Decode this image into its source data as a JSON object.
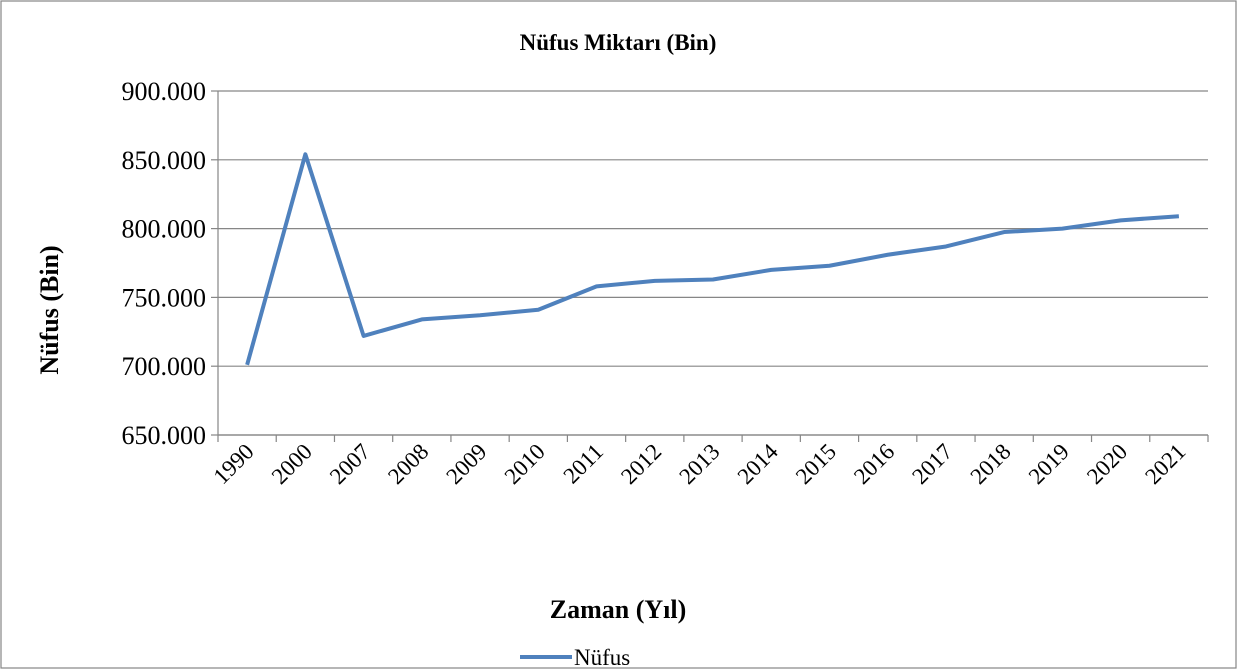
{
  "chart_data": {
    "type": "line",
    "title": "Nüfus Miktarı (Bin)",
    "x_label": "Zaman (Yıl)",
    "y_label": "Nüfus (Bin)",
    "categories": [
      "1990",
      "2000",
      "2007",
      "2008",
      "2009",
      "2010",
      "2011",
      "2012",
      "2013",
      "2014",
      "2015",
      "2016",
      "2017",
      "2018",
      "2019",
      "2020",
      "2021"
    ],
    "series": [
      {
        "name": "Nüfus",
        "color": "#4f81bd",
        "values": [
          701000,
          854000,
          722000,
          734000,
          737000,
          741000,
          758000,
          762000,
          763000,
          770000,
          773000,
          781000,
          787000,
          797500,
          800000,
          806000,
          809000
        ]
      }
    ],
    "ylim": [
      650000,
      900000
    ],
    "yticks": [
      {
        "value": 650000,
        "label": "650.000"
      },
      {
        "value": 700000,
        "label": "700.000"
      },
      {
        "value": 750000,
        "label": "750.000"
      },
      {
        "value": 800000,
        "label": "800.000"
      },
      {
        "value": 850000,
        "label": "850.000"
      },
      {
        "value": 900000,
        "label": "900.000"
      }
    ],
    "grid": true,
    "legend": "bottom"
  }
}
